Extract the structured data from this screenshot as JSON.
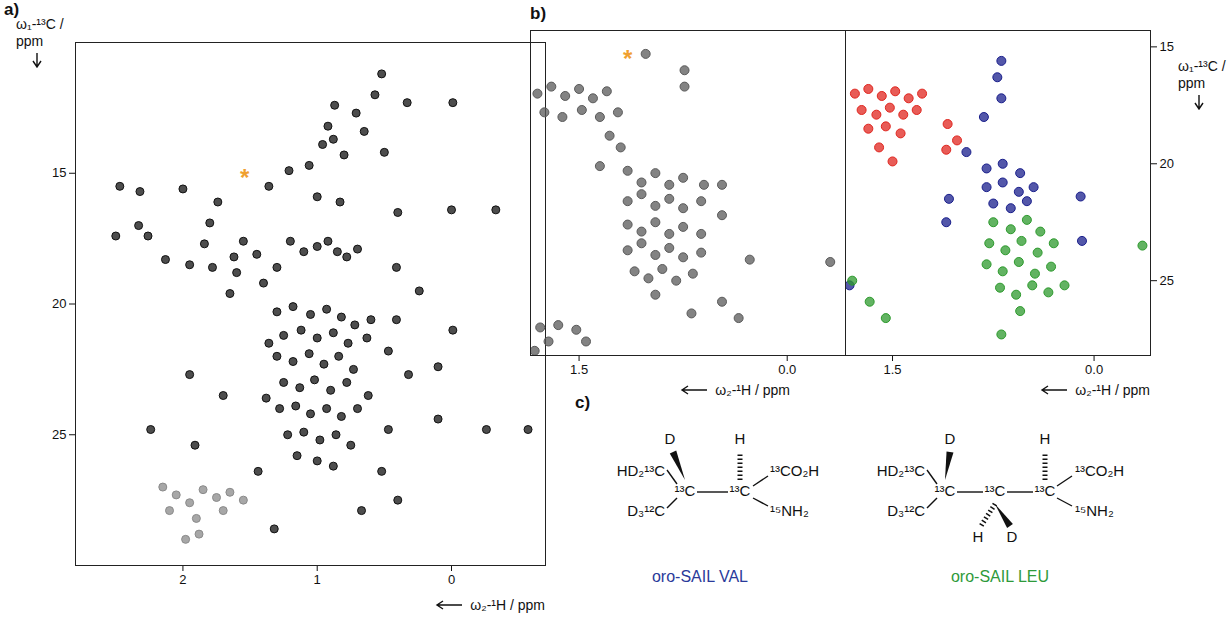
{
  "chart_data": [
    {
      "panel": "a)",
      "type": "scatter",
      "x_label": "ω₂-¹H / ppm",
      "y_label": "ω₁-¹³C / ppm",
      "xlim": [
        2.8,
        -0.7
      ],
      "ylim": [
        30,
        10
      ],
      "xticks": [
        2,
        1,
        0
      ],
      "yticks": [
        15,
        20,
        25
      ],
      "series": [
        {
          "color": "#111111",
          "x": [
            0.52,
            0.57,
            0.33,
            -0.01,
            0.87,
            0.71,
            0.92,
            0.88,
            0.65,
            0.96,
            0.5,
            0.8,
            1.06,
            1.21,
            1.36,
            2.47,
            2.32,
            2,
            1.74,
            1,
            0.83,
            0.4,
            0,
            -0.33,
            2.5,
            2.33,
            2.26,
            1.8,
            1.84,
            1.55,
            1.62,
            1.45,
            1.3,
            1.2,
            1.1,
            1,
            0.92,
            0.85,
            0.78,
            0.7,
            2.13,
            1.95,
            1.78,
            1.6,
            1.65,
            1.4,
            0.41,
            0.24,
            0.6,
            0.41,
            -0.01,
            0.47,
            0.32,
            0.1,
            0.1,
            -0.26,
            -0.57,
            0.47,
            2.24,
            1.91,
            1.44,
            0.52,
            0.67,
            0.4,
            1.32,
            1.95,
            1.7,
            1.3,
            1.18,
            1.05,
            0.93,
            0.82,
            0.72,
            1.25,
            1.12,
            1,
            0.88,
            0.77,
            1.3,
            1.18,
            1.06,
            0.95,
            0.84,
            0.73,
            1.25,
            1.13,
            1.02,
            0.9,
            0.78,
            1.28,
            1.16,
            1.05,
            0.93,
            0.82,
            0.7,
            1.22,
            1.1,
            0.98,
            0.86,
            0.75,
            1.15,
            1,
            0.88,
            1.36,
            1.38,
            0.62,
            0.63
          ],
          "values": [
            11.2,
            12,
            12.3,
            12.3,
            12.4,
            12.7,
            13.2,
            13.7,
            13.4,
            13.9,
            14.2,
            14.3,
            14.7,
            14.9,
            15.5,
            15.5,
            15.7,
            15.6,
            16.1,
            15.9,
            16.1,
            16.5,
            16.4,
            16.4,
            17.4,
            17,
            17.4,
            16.9,
            17.7,
            17.6,
            18.2,
            18.1,
            18.6,
            17.6,
            18,
            17.8,
            17.6,
            18,
            18.2,
            17.9,
            18.3,
            18.5,
            18.6,
            18.8,
            19.6,
            19.2,
            18.6,
            19.5,
            20.6,
            20.6,
            21,
            21.8,
            22.7,
            22.4,
            24.4,
            24.8,
            24.8,
            24.8,
            24.8,
            25.4,
            26.4,
            26.4,
            27.9,
            27.5,
            28.6,
            22.7,
            23.5,
            20.3,
            20.1,
            20.4,
            20.2,
            20.5,
            20.8,
            21.2,
            21,
            21.3,
            21.1,
            21.5,
            22,
            22.2,
            21.9,
            22.3,
            22,
            22.5,
            23,
            23.2,
            22.9,
            23.3,
            23,
            24,
            23.9,
            24.2,
            24,
            24.3,
            24,
            25,
            24.9,
            25.2,
            25,
            25.4,
            25.8,
            26,
            26.2,
            21.5,
            23.6,
            23.5,
            21.3
          ]
        },
        {
          "color": "#8a8a8a",
          "x": [
            2.15,
            2.05,
            1.95,
            1.85,
            1.75,
            1.65,
            1.55,
            2.1,
            1.9,
            1.7,
            1.98,
            1.88
          ],
          "values": [
            27,
            27.3,
            27.6,
            27.1,
            27.4,
            27.2,
            27.5,
            27.9,
            28.2,
            27.9,
            29,
            28.8
          ]
        }
      ],
      "annotations": [
        {
          "text": "*",
          "x": 1.54,
          "y": 15.0,
          "color": "#f0a030"
        }
      ]
    },
    {
      "panel": "b)",
      "type": "scatter",
      "x_label": "ω₂-¹H / ppm",
      "xlim": [
        1.85,
        -0.42
      ],
      "ylim": [
        28.2,
        14.3
      ],
      "xticks": [
        1.5,
        {
          "value": 0,
          "label": "0.0"
        }
      ],
      "tick_labels": "x",
      "series": [
        {
          "color": "#5a5a5a",
          "x": [
            1.02,
            0.74,
            0.74,
            1.8,
            1.7,
            1.6,
            1.5,
            1.4,
            1.3,
            1.75,
            1.62,
            1.48,
            1.35,
            1.22,
            1.28,
            1.2,
            1.35,
            1.15,
            1.05,
            0.95,
            0.85,
            0.75,
            0.6,
            0.47,
            1.15,
            1.05,
            0.95,
            0.85,
            0.75,
            0.62,
            0.47,
            1.15,
            1.05,
            0.95,
            0.85,
            0.75,
            0.62,
            1.15,
            1.05,
            0.95,
            0.85,
            0.75,
            0.62,
            0.27,
            -0.31,
            1.1,
            1,
            0.9,
            0.8,
            0.68,
            0.95,
            0.47,
            0.69,
            0.35,
            1.78,
            1.65,
            1.52,
            1.72,
            1.45,
            1.82
          ],
          "values": [
            15.3,
            16,
            16.7,
            17,
            16.7,
            17.1,
            16.8,
            17.2,
            16.9,
            17.8,
            18,
            17.7,
            18,
            17.8,
            18.8,
            19.3,
            20.1,
            20.3,
            20.8,
            20.4,
            20.9,
            20.6,
            20.9,
            20.9,
            21.6,
            21.3,
            21.8,
            21.5,
            21.9,
            21.6,
            22.2,
            22.6,
            22.9,
            22.5,
            23,
            22.7,
            23,
            23.7,
            23.4,
            23.9,
            23.6,
            24,
            23.8,
            24.1,
            24.2,
            24.6,
            24.9,
            24.5,
            25,
            24.7,
            25.6,
            25.9,
            26.4,
            26.6,
            27,
            26.9,
            27.1,
            27.6,
            27.6,
            28
          ]
        }
      ],
      "annotations": [
        {
          "text": "*",
          "x": 1.15,
          "y": 15.3,
          "color": "#f0a030"
        }
      ]
    },
    {
      "type": "scatter",
      "x_label": "ω₂-¹H / ppm",
      "y_label": "ω₁-¹³C / ppm",
      "xlim": [
        1.85,
        -0.42
      ],
      "ylim": [
        28.2,
        14.3
      ],
      "xticks": [
        1.5,
        {
          "value": 0,
          "label": "0.0"
        }
      ],
      "yticks": [
        15,
        20,
        25
      ],
      "series": [
        {
          "color": "#e0261f",
          "x": [
            1.78,
            1.68,
            1.58,
            1.48,
            1.38,
            1.28,
            1.73,
            1.62,
            1.52,
            1.42,
            1.32,
            1.68,
            1.55,
            1.44,
            1.6,
            1.5,
            1.09,
            1.02,
            1.1
          ],
          "values": [
            17,
            16.8,
            17.1,
            16.9,
            17.2,
            17,
            17.7,
            17.9,
            17.6,
            17.9,
            17.7,
            18.5,
            18.4,
            18.7,
            19.3,
            19.9,
            18.3,
            19,
            19.4
          ]
        },
        {
          "color": "#1a1f8c",
          "x": [
            0.69,
            0.72,
            0.69,
            0.82,
            0.95,
            0.8,
            0.68,
            0.55,
            0.8,
            0.68,
            0.56,
            0.45,
            0.75,
            0.62,
            0.5,
            1.08,
            1.1,
            0.1,
            0.09,
            1.82
          ],
          "values": [
            15.6,
            16.3,
            17.2,
            18,
            19.5,
            20.2,
            20,
            20.4,
            21,
            20.8,
            21.2,
            21,
            21.7,
            21.9,
            21.6,
            21.5,
            22.5,
            21.4,
            23.3,
            25.2
          ]
        },
        {
          "color": "#2d9a2d",
          "x": [
            0.75,
            0.62,
            0.5,
            0.4,
            0.78,
            0.66,
            0.54,
            0.42,
            0.3,
            0.8,
            0.68,
            0.56,
            0.44,
            0.32,
            0.7,
            0.58,
            0.46,
            0.34,
            0.22,
            0.55,
            -0.36,
            0.69,
            1.67,
            1.55,
            1.8
          ],
          "values": [
            22.5,
            22.8,
            22.4,
            22.9,
            23.4,
            23.7,
            23.3,
            23.8,
            23.4,
            24.3,
            24.6,
            24.2,
            24.7,
            24.4,
            25.3,
            25.6,
            25.2,
            25.5,
            25.2,
            26.3,
            23.5,
            27.3,
            25.9,
            26.6,
            25
          ]
        }
      ]
    }
  ],
  "structures_panel": "c)",
  "structures": [
    {
      "label": "oro-SAIL VAL",
      "color": "#2a3a9a",
      "atoms": [
        "HD₂¹³C",
        "D₃¹²C",
        "¹³C",
        "D",
        "¹³C",
        "H",
        "¹³CO₂H",
        "¹⁵NH₂"
      ]
    },
    {
      "label": "oro-SAIL LEU",
      "color": "#2e9a3a",
      "atoms": [
        "HD₂¹³C",
        "D₃¹²C",
        "¹³C",
        "D",
        "¹³C",
        "H",
        "D",
        "¹³C",
        "H",
        "¹³CO₂H",
        "¹⁵NH₂"
      ]
    }
  ]
}
